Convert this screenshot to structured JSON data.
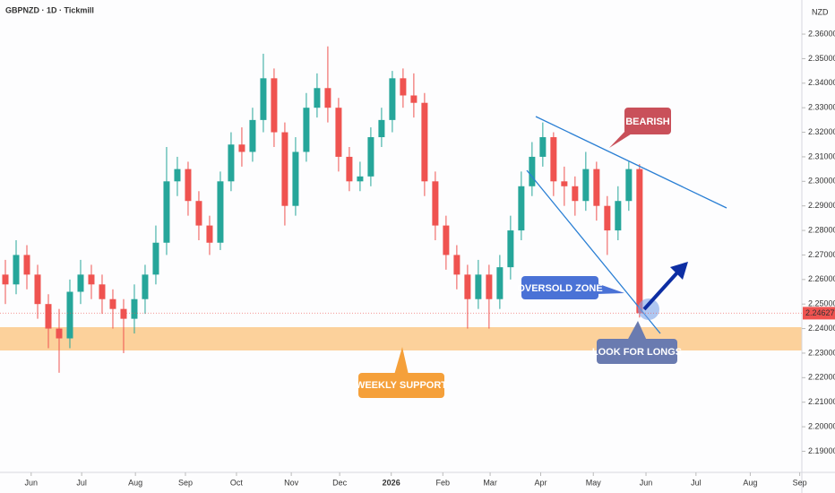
{
  "chart_data": {
    "type": "candlestick",
    "title": "GBPNZD · 1D · Tickmill",
    "currency": "NZD",
    "up_color": "#26a69a",
    "down_color": "#ef5350",
    "xlim": [
      -0.5,
      74.1
    ],
    "xticks": [
      {
        "value": 2.4,
        "label": "Jun"
      },
      {
        "value": 7.1,
        "label": "Jul"
      },
      {
        "value": 12.1,
        "label": "Aug"
      },
      {
        "value": 16.75,
        "label": "Sep"
      },
      {
        "value": 21.5,
        "label": "Oct"
      },
      {
        "value": 26.6,
        "label": "Nov"
      },
      {
        "value": 31.1,
        "label": "Dec"
      },
      {
        "value": 35.9,
        "label": "2026"
      },
      {
        "value": 40.7,
        "label": "Feb"
      },
      {
        "value": 45.1,
        "label": "Mar"
      },
      {
        "value": 49.8,
        "label": "Apr"
      },
      {
        "value": 54.7,
        "label": "May"
      },
      {
        "value": 59.6,
        "label": "Jun"
      },
      {
        "value": 64.25,
        "label": "Jul"
      },
      {
        "value": 69.3,
        "label": "Aug"
      },
      {
        "value": 73.9,
        "label": "Sep"
      }
    ],
    "ylim": [
      2.1814,
      2.3739
    ],
    "yticks": [
      {
        "value": 2.19,
        "label": "2.19000"
      },
      {
        "value": 2.2,
        "label": "2.20000"
      },
      {
        "value": 2.21,
        "label": "2.21000"
      },
      {
        "value": 2.22,
        "label": "2.22000"
      },
      {
        "value": 2.23,
        "label": "2.23000"
      },
      {
        "value": 2.24,
        "label": "2.24000"
      },
      {
        "value": 2.25,
        "label": "2.25000"
      },
      {
        "value": 2.26,
        "label": "2.26000"
      },
      {
        "value": 2.27,
        "label": "2.27000"
      },
      {
        "value": 2.28,
        "label": "2.28000"
      },
      {
        "value": 2.29,
        "label": "2.29000"
      },
      {
        "value": 2.3,
        "label": "2.30000"
      },
      {
        "value": 2.31,
        "label": "2.31000"
      },
      {
        "value": 2.32,
        "label": "2.32000"
      },
      {
        "value": 2.33,
        "label": "2.33000"
      },
      {
        "value": 2.34,
        "label": "2.34000"
      },
      {
        "value": 2.35,
        "label": "2.35000"
      },
      {
        "value": 2.36,
        "label": "2.36000"
      }
    ],
    "open": [
      2.262,
      2.258,
      2.27,
      2.262,
      2.25,
      2.24,
      2.236,
      2.255,
      2.262,
      2.258,
      2.252,
      2.248,
      2.244,
      2.252,
      2.262,
      2.275,
      2.3,
      2.305,
      2.292,
      2.282,
      2.275,
      2.3,
      2.315,
      2.312,
      2.325,
      2.342,
      2.32,
      2.29,
      2.312,
      2.33,
      2.338,
      2.33,
      2.31,
      2.3,
      2.302,
      2.318,
      2.325,
      2.342,
      2.335,
      2.332,
      2.3,
      2.282,
      2.27,
      2.262,
      2.252,
      2.262,
      2.252,
      2.265,
      2.28,
      2.298,
      2.31,
      2.318,
      2.3,
      2.298,
      2.292,
      2.305,
      2.29,
      2.28,
      2.292,
      2.305
    ],
    "high": [
      2.268,
      2.276,
      2.274,
      2.266,
      2.254,
      2.248,
      2.26,
      2.268,
      2.266,
      2.262,
      2.256,
      2.252,
      2.258,
      2.266,
      2.282,
      2.314,
      2.31,
      2.308,
      2.296,
      2.286,
      2.304,
      2.32,
      2.322,
      2.33,
      2.352,
      2.346,
      2.324,
      2.318,
      2.336,
      2.344,
      2.355,
      2.334,
      2.314,
      2.308,
      2.322,
      2.33,
      2.345,
      2.346,
      2.344,
      2.336,
      2.304,
      2.286,
      2.274,
      2.266,
      2.268,
      2.266,
      2.27,
      2.286,
      2.304,
      2.316,
      2.324,
      2.32,
      2.306,
      2.302,
      2.312,
      2.308,
      2.294,
      2.298,
      2.308,
      2.307
    ],
    "low": [
      2.25,
      2.254,
      2.256,
      2.244,
      2.232,
      2.222,
      2.232,
      2.25,
      2.252,
      2.246,
      2.24,
      2.23,
      2.238,
      2.246,
      2.258,
      2.27,
      2.294,
      2.286,
      2.276,
      2.27,
      2.272,
      2.296,
      2.306,
      2.308,
      2.32,
      2.314,
      2.282,
      2.286,
      2.308,
      2.326,
      2.324,
      2.304,
      2.296,
      2.296,
      2.298,
      2.314,
      2.32,
      2.33,
      2.326,
      2.294,
      2.276,
      2.264,
      2.256,
      2.24,
      2.248,
      2.24,
      2.248,
      2.26,
      2.276,
      2.294,
      2.306,
      2.294,
      2.29,
      2.286,
      2.288,
      2.284,
      2.27,
      2.276,
      2.288,
      2.2445
    ],
    "close": [
      2.258,
      2.27,
      2.262,
      2.25,
      2.24,
      2.236,
      2.255,
      2.262,
      2.258,
      2.252,
      2.248,
      2.244,
      2.252,
      2.262,
      2.275,
      2.3,
      2.305,
      2.292,
      2.282,
      2.275,
      2.3,
      2.315,
      2.312,
      2.325,
      2.342,
      2.32,
      2.29,
      2.312,
      2.33,
      2.338,
      2.33,
      2.31,
      2.3,
      2.302,
      2.318,
      2.325,
      2.342,
      2.335,
      2.332,
      2.3,
      2.282,
      2.27,
      2.262,
      2.252,
      2.262,
      2.252,
      2.265,
      2.28,
      2.298,
      2.31,
      2.318,
      2.3,
      2.298,
      2.292,
      2.305,
      2.29,
      2.28,
      2.292,
      2.305,
      2.24627
    ],
    "annotations": {
      "bearish": "BEARISH",
      "oversold": "OVERSOLD ZONE",
      "longs": "LOOK FOR LONGS",
      "support": "WEEKLY SUPPORT"
    }
  }
}
